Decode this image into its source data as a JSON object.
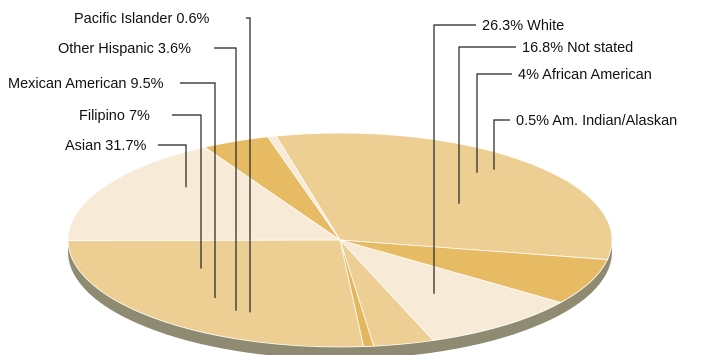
{
  "chart_data": {
    "type": "pie",
    "style": "3d-tilted",
    "title": "",
    "slices": [
      {
        "label": "Asian",
        "value": 31.7,
        "text": "Asian 31.7%",
        "color": "#eecf93"
      },
      {
        "label": "Filipino",
        "value": 7,
        "text": "Filipino 7%",
        "color": "#e7bb63"
      },
      {
        "label": "Mexican American",
        "value": 9.5,
        "text": "Mexican American 9.5%",
        "color": "#f7ead6"
      },
      {
        "label": "Other Hispanic",
        "value": 3.6,
        "text": "Other Hispanic 3.6%",
        "color": "#eecf93"
      },
      {
        "label": "Pacific Islander",
        "value": 0.6,
        "text": "Pacific Islander 0.6%",
        "color": "#e4b75c"
      },
      {
        "label": "White",
        "value": 26.3,
        "text": "26.3% White",
        "color": "#eecf93"
      },
      {
        "label": "Not stated",
        "value": 16.8,
        "text": "16.8% Not stated",
        "color": "#f7ead6"
      },
      {
        "label": "African American",
        "value": 4,
        "text": "4% African American",
        "color": "#e7bb63"
      },
      {
        "label": "Am. Indian/Alaskan",
        "value": 0.5,
        "text": "0.5% Am. Indian/Alaskan",
        "color": "#f7ead6"
      }
    ],
    "colors": {
      "side": "#8f8b73",
      "outline": "#ffffff"
    }
  }
}
